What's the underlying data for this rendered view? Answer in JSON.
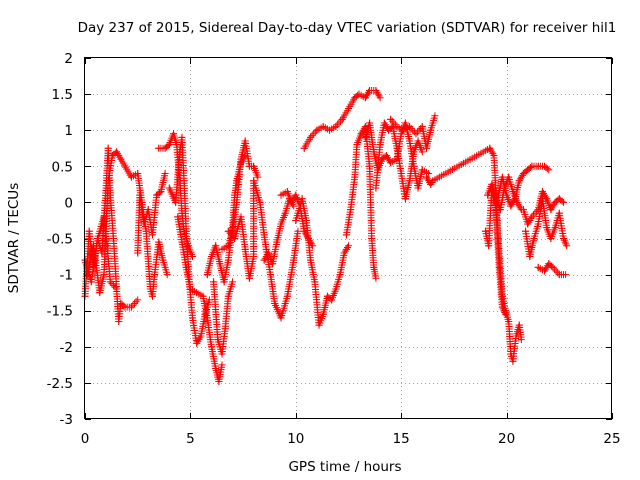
{
  "chart_data": {
    "type": "scatter",
    "title": "Day 237 of 2015, Sidereal Day-to-day VTEC variation (SDTVAR) for receiver hil1",
    "xlabel": "GPS time / hours",
    "ylabel": "SDTVAR / TECUs",
    "xlim": [
      0,
      25
    ],
    "ylim": [
      -3,
      2
    ],
    "x_ticks": [
      0,
      5,
      10,
      15,
      20,
      25
    ],
    "y_ticks": [
      -3,
      -2.5,
      -2,
      -1.5,
      -1,
      -0.5,
      0,
      0.5,
      1,
      1.5,
      2
    ],
    "x_tick_labels": [
      "0",
      "5",
      "10",
      "15",
      "20",
      "25"
    ],
    "y_tick_labels": [
      "-3",
      "-2.5",
      "-2",
      "-1.5",
      "-1",
      "-0.5",
      "0",
      "0.5",
      "1",
      "1.5",
      "2"
    ],
    "grid": true,
    "marker": "plus",
    "color": "#ff0000",
    "series": [
      {
        "name": "",
        "points": [
          [
            0.0,
            -1.3
          ],
          [
            0.2,
            -0.4
          ],
          [
            0.4,
            -0.9
          ],
          [
            0.6,
            -0.5
          ],
          [
            0.8,
            -0.7
          ],
          [
            1.0,
            0.2
          ],
          [
            1.1,
            0.75
          ],
          [
            1.2,
            0.1
          ],
          [
            1.35,
            -0.5
          ],
          [
            1.5,
            -1.2
          ],
          [
            1.6,
            -1.65
          ],
          [
            1.7,
            -1.4
          ],
          [
            1.9,
            -1.45
          ],
          [
            2.2,
            -1.45
          ],
          [
            2.5,
            -1.35
          ],
          [
            0.0,
            -0.8
          ],
          [
            0.3,
            -1.1
          ],
          [
            0.6,
            -0.5
          ],
          [
            0.9,
            -0.2
          ],
          [
            1.05,
            -0.6
          ],
          [
            1.2,
            -1.1
          ],
          [
            1.5,
            -1.2
          ],
          [
            0.1,
            -1.0
          ],
          [
            0.4,
            -0.6
          ],
          [
            0.7,
            -1.25
          ],
          [
            0.9,
            -1.0
          ],
          [
            1.1,
            0.3
          ],
          [
            1.3,
            0.65
          ],
          [
            1.5,
            0.7
          ],
          [
            1.7,
            0.6
          ],
          [
            2.2,
            0.35
          ],
          [
            2.5,
            0.4
          ],
          [
            2.7,
            0.0
          ],
          [
            2.9,
            -0.4
          ],
          [
            3.1,
            -1.2
          ],
          [
            3.2,
            -1.3
          ],
          [
            3.3,
            -1.0
          ],
          [
            3.5,
            -0.55
          ],
          [
            3.7,
            -0.8
          ],
          [
            3.9,
            -1.0
          ],
          [
            2.5,
            -0.7
          ],
          [
            2.6,
            0.1
          ],
          [
            2.8,
            -0.3
          ],
          [
            3.0,
            -0.1
          ],
          [
            3.2,
            -0.45
          ],
          [
            3.4,
            0.1
          ],
          [
            3.6,
            0.15
          ],
          [
            3.8,
            0.4
          ],
          [
            3.5,
            0.75
          ],
          [
            3.8,
            0.75
          ],
          [
            4.0,
            0.8
          ],
          [
            4.2,
            0.95
          ],
          [
            4.35,
            0.8
          ],
          [
            4.5,
            0.3
          ],
          [
            4.6,
            -0.15
          ],
          [
            4.7,
            -0.4
          ],
          [
            4.9,
            -0.6
          ],
          [
            5.1,
            -0.75
          ],
          [
            4.0,
            0.2
          ],
          [
            4.3,
            0.0
          ],
          [
            4.5,
            0.7
          ],
          [
            4.6,
            0.9
          ],
          [
            4.7,
            0.3
          ],
          [
            4.8,
            -0.4
          ],
          [
            4.95,
            -1.1
          ],
          [
            5.1,
            -1.6
          ],
          [
            5.3,
            -1.95
          ],
          [
            5.5,
            -1.85
          ],
          [
            5.7,
            -1.55
          ],
          [
            5.9,
            -1.35
          ],
          [
            4.4,
            -0.2
          ],
          [
            4.6,
            -0.55
          ],
          [
            4.8,
            -0.9
          ],
          [
            5.0,
            -1.2
          ],
          [
            5.3,
            -1.25
          ],
          [
            5.6,
            -1.3
          ],
          [
            5.8,
            -1.6
          ],
          [
            6.0,
            -2.0
          ],
          [
            6.2,
            -2.3
          ],
          [
            6.35,
            -2.48
          ],
          [
            6.5,
            -2.25
          ],
          [
            5.8,
            -1.0
          ],
          [
            6.0,
            -0.75
          ],
          [
            6.2,
            -0.6
          ],
          [
            6.4,
            -0.85
          ],
          [
            6.6,
            -1.1
          ],
          [
            6.8,
            -0.8
          ],
          [
            7.0,
            -0.35
          ],
          [
            7.1,
            0.1
          ],
          [
            7.2,
            0.3
          ],
          [
            7.4,
            0.55
          ],
          [
            7.6,
            0.65
          ],
          [
            6.1,
            -1.1
          ],
          [
            6.3,
            -1.9
          ],
          [
            6.5,
            -2.1
          ],
          [
            6.65,
            -1.75
          ],
          [
            6.8,
            -1.3
          ],
          [
            7.0,
            -1.1
          ],
          [
            6.5,
            -0.65
          ],
          [
            6.8,
            -0.6
          ],
          [
            7.0,
            -0.4
          ],
          [
            7.2,
            0.0
          ],
          [
            7.4,
            0.6
          ],
          [
            7.6,
            0.85
          ],
          [
            7.8,
            0.5
          ],
          [
            8.0,
            0.5
          ],
          [
            8.2,
            0.35
          ],
          [
            6.8,
            -0.4
          ],
          [
            7.1,
            -0.5
          ],
          [
            7.4,
            -0.2
          ],
          [
            7.6,
            -0.65
          ],
          [
            7.8,
            -1.05
          ],
          [
            8.0,
            -0.75
          ],
          [
            8.0,
            0.3
          ],
          [
            8.3,
            0.0
          ],
          [
            8.5,
            -0.45
          ],
          [
            8.6,
            -0.65
          ],
          [
            8.8,
            -1.0
          ],
          [
            9.0,
            -1.4
          ],
          [
            9.3,
            -1.6
          ],
          [
            9.6,
            -1.3
          ],
          [
            9.9,
            -0.8
          ],
          [
            10.1,
            -0.4
          ],
          [
            8.5,
            -0.8
          ],
          [
            8.7,
            -0.7
          ],
          [
            8.9,
            -0.85
          ],
          [
            9.1,
            -0.55
          ],
          [
            9.3,
            -0.3
          ],
          [
            9.5,
            -0.15
          ],
          [
            9.7,
            0.05
          ],
          [
            9.9,
            -0.05
          ],
          [
            9.3,
            0.1
          ],
          [
            9.6,
            0.15
          ],
          [
            9.8,
            0.0
          ],
          [
            10.0,
            0.1
          ],
          [
            10.2,
            -0.05
          ],
          [
            10.4,
            -0.4
          ],
          [
            10.6,
            -0.5
          ],
          [
            10.8,
            -0.6
          ],
          [
            10.0,
            -0.25
          ],
          [
            10.3,
            0.05
          ],
          [
            10.5,
            -0.25
          ],
          [
            10.7,
            -0.8
          ],
          [
            10.9,
            -1.1
          ],
          [
            11.1,
            -1.7
          ],
          [
            11.3,
            -1.55
          ],
          [
            11.5,
            -1.3
          ],
          [
            11.7,
            -1.35
          ],
          [
            11.9,
            -1.2
          ],
          [
            12.1,
            -1.0
          ],
          [
            12.3,
            -0.7
          ],
          [
            12.5,
            -0.6
          ],
          [
            10.4,
            0.75
          ],
          [
            10.7,
            0.9
          ],
          [
            11.0,
            1.0
          ],
          [
            11.3,
            1.05
          ],
          [
            11.6,
            1.0
          ],
          [
            11.9,
            1.05
          ],
          [
            12.2,
            1.15
          ],
          [
            12.5,
            1.3
          ],
          [
            12.8,
            1.45
          ],
          [
            13.0,
            1.5
          ],
          [
            13.3,
            1.45
          ],
          [
            13.5,
            1.55
          ],
          [
            13.8,
            1.55
          ],
          [
            14.0,
            1.45
          ],
          [
            12.4,
            -0.45
          ],
          [
            12.6,
            -0.1
          ],
          [
            12.8,
            0.35
          ],
          [
            12.9,
            0.8
          ],
          [
            13.1,
            0.95
          ],
          [
            13.3,
            1.05
          ],
          [
            13.5,
            0.5
          ],
          [
            13.6,
            -0.5
          ],
          [
            13.7,
            -0.9
          ],
          [
            13.8,
            -1.05
          ],
          [
            13.3,
            0.9
          ],
          [
            13.5,
            1.1
          ],
          [
            13.7,
            0.7
          ],
          [
            13.9,
            0.45
          ],
          [
            14.1,
            0.6
          ],
          [
            14.3,
            0.65
          ],
          [
            14.5,
            0.55
          ],
          [
            14.8,
            0.6
          ],
          [
            15.0,
            0.95
          ],
          [
            15.2,
            1.1
          ],
          [
            15.4,
            0.85
          ],
          [
            15.6,
            0.5
          ],
          [
            15.8,
            0.2
          ],
          [
            16.0,
            0.45
          ],
          [
            16.3,
            0.4
          ],
          [
            13.8,
            0.2
          ],
          [
            14.0,
            0.8
          ],
          [
            14.2,
            1.1
          ],
          [
            14.4,
            1.0
          ],
          [
            14.6,
            1.05
          ],
          [
            14.8,
            0.75
          ],
          [
            15.0,
            0.4
          ],
          [
            15.2,
            0.05
          ],
          [
            15.4,
            0.3
          ],
          [
            15.6,
            0.7
          ],
          [
            15.8,
            0.85
          ],
          [
            16.0,
            0.7
          ],
          [
            14.5,
            1.15
          ],
          [
            14.8,
            1.05
          ],
          [
            15.1,
            1.0
          ],
          [
            15.4,
            1.05
          ],
          [
            15.7,
            0.95
          ],
          [
            16.0,
            1.05
          ],
          [
            16.2,
            0.75
          ],
          [
            16.4,
            1.0
          ],
          [
            16.6,
            1.2
          ],
          [
            16.2,
            0.35
          ],
          [
            16.4,
            0.25
          ],
          [
            16.5,
            0.3
          ],
          [
            19.2,
            0.75
          ],
          [
            19.4,
            0.65
          ],
          [
            19.5,
            0.1
          ],
          [
            19.6,
            -0.5
          ],
          [
            19.8,
            -1.3
          ],
          [
            19.95,
            -1.5
          ],
          [
            20.1,
            -1.65
          ],
          [
            20.2,
            -2.1
          ],
          [
            20.3,
            -2.2
          ],
          [
            20.45,
            -1.85
          ],
          [
            20.6,
            -1.7
          ],
          [
            20.7,
            -1.9
          ],
          [
            19.0,
            -0.4
          ],
          [
            19.15,
            -0.6
          ],
          [
            19.3,
            0.2
          ],
          [
            19.5,
            -0.1
          ],
          [
            19.65,
            -0.9
          ],
          [
            19.8,
            -1.45
          ],
          [
            19.95,
            -1.55
          ],
          [
            19.1,
            0.1
          ],
          [
            19.3,
            0.25
          ],
          [
            19.5,
            0.05
          ],
          [
            19.7,
            -0.1
          ],
          [
            19.9,
            0.2
          ],
          [
            20.1,
            0.35
          ],
          [
            20.3,
            0.15
          ],
          [
            20.5,
            0.0
          ],
          [
            20.7,
            -0.1
          ],
          [
            19.4,
            0.0
          ],
          [
            19.6,
            0.1
          ],
          [
            19.8,
            0.35
          ],
          [
            20.0,
            0.1
          ],
          [
            20.2,
            -0.05
          ],
          [
            20.4,
            0.05
          ],
          [
            20.6,
            0.3
          ],
          [
            20.8,
            0.4
          ],
          [
            21.0,
            0.45
          ],
          [
            21.2,
            0.5
          ],
          [
            21.5,
            0.5
          ],
          [
            21.8,
            0.5
          ],
          [
            22.0,
            0.45
          ],
          [
            20.9,
            -0.4
          ],
          [
            21.1,
            -0.75
          ],
          [
            21.3,
            -0.5
          ],
          [
            21.5,
            -0.3
          ],
          [
            21.7,
            0.05
          ],
          [
            21.9,
            -0.35
          ],
          [
            22.1,
            -0.5
          ],
          [
            22.3,
            -0.35
          ],
          [
            22.5,
            -0.15
          ],
          [
            22.7,
            -0.5
          ],
          [
            22.85,
            -0.6
          ],
          [
            20.8,
            -0.1
          ],
          [
            21.0,
            -0.3
          ],
          [
            21.2,
            -0.2
          ],
          [
            21.5,
            -0.1
          ],
          [
            21.7,
            0.15
          ],
          [
            21.9,
            0.05
          ],
          [
            22.1,
            -0.1
          ],
          [
            22.3,
            0.0
          ],
          [
            22.5,
            0.05
          ],
          [
            22.7,
            0.0
          ],
          [
            21.5,
            -0.9
          ],
          [
            21.8,
            -0.95
          ],
          [
            22.0,
            -0.85
          ],
          [
            22.2,
            -0.9
          ],
          [
            22.5,
            -1.0
          ],
          [
            22.8,
            -1.0
          ]
        ]
      }
    ]
  }
}
